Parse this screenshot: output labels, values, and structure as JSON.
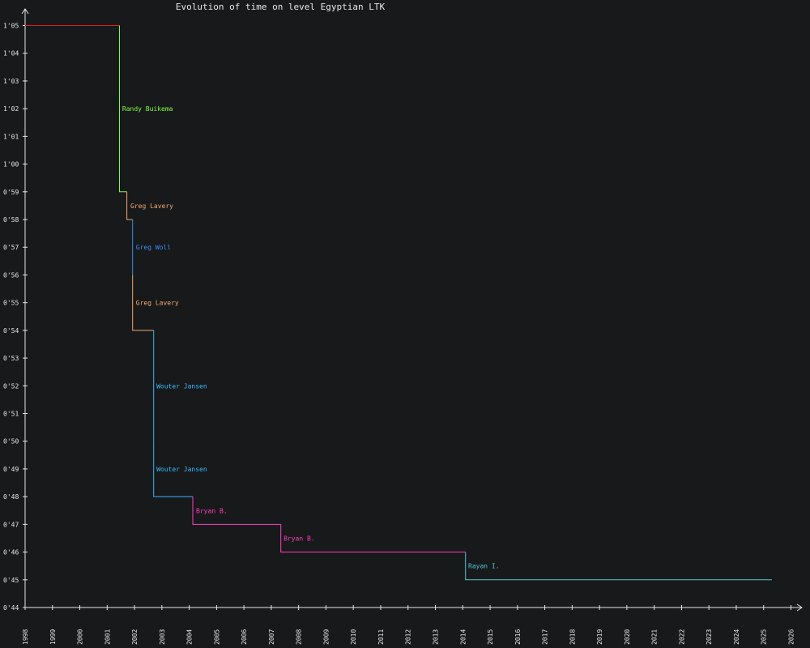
{
  "chart_data": {
    "type": "line",
    "subtype": "step",
    "title": "Evolution of time on level Egyptian LTK",
    "xlabel": "",
    "ylabel": "",
    "xlim": [
      1998,
      2026.4
    ],
    "ylim": [
      44,
      65.6
    ],
    "x_ticks": [
      "1998",
      "1999",
      "2000",
      "2001",
      "2002",
      "2003",
      "2004",
      "2005",
      "2006",
      "2007",
      "2008",
      "2009",
      "2010",
      "2011",
      "2012",
      "2013",
      "2014",
      "2015",
      "2016",
      "2017",
      "2018",
      "2019",
      "2020",
      "2021",
      "2022",
      "2023",
      "2024",
      "2025",
      "2026"
    ],
    "y_ticks": [
      {
        "v": 65,
        "label": "1'05"
      },
      {
        "v": 64,
        "label": "1'04"
      },
      {
        "v": 63,
        "label": "1'03"
      },
      {
        "v": 62,
        "label": "1'02"
      },
      {
        "v": 61,
        "label": "1'01"
      },
      {
        "v": 60,
        "label": "1'00"
      },
      {
        "v": 59,
        "label": "0'59"
      },
      {
        "v": 58,
        "label": "0'58"
      },
      {
        "v": 57,
        "label": "0'57"
      },
      {
        "v": 56,
        "label": "0'56"
      },
      {
        "v": 55,
        "label": "0'55"
      },
      {
        "v": 54,
        "label": "0'54"
      },
      {
        "v": 53,
        "label": "0'53"
      },
      {
        "v": 52,
        "label": "0'52"
      },
      {
        "v": 51,
        "label": "0'51"
      },
      {
        "v": 50,
        "label": "0'50"
      },
      {
        "v": 49,
        "label": "0'49"
      },
      {
        "v": 48,
        "label": "0'48"
      },
      {
        "v": 47,
        "label": "0'47"
      },
      {
        "v": 46,
        "label": "0'46"
      },
      {
        "v": 45,
        "label": "0'45"
      },
      {
        "v": 44,
        "label": "0'44"
      }
    ],
    "series": [
      {
        "color": "#e02020",
        "points": [
          [
            1998.0,
            65
          ],
          [
            2001.45,
            65
          ]
        ]
      },
      {
        "name": "Randy Buikema",
        "color": "#7fff3f",
        "label_at": [
          2001.55,
          62
        ],
        "points": [
          [
            2001.45,
            65
          ],
          [
            2001.45,
            59
          ],
          [
            2001.72,
            59
          ]
        ]
      },
      {
        "name": "Greg Lavery",
        "color": "#f0a868",
        "label_at": [
          2001.85,
          58.5
        ],
        "points": [
          [
            2001.72,
            59
          ],
          [
            2001.72,
            58
          ],
          [
            2001.93,
            58
          ]
        ]
      },
      {
        "name": "Greg Woll",
        "color": "#3a8ef6",
        "label_at": [
          2002.05,
          57
        ],
        "points": [
          [
            2001.93,
            58
          ],
          [
            2001.93,
            56
          ]
        ]
      },
      {
        "name": "Greg Lavery",
        "color": "#f0a868",
        "label_at": [
          2002.05,
          55
        ],
        "points": [
          [
            2001.93,
            56
          ],
          [
            2001.93,
            54
          ],
          [
            2002.7,
            54
          ]
        ]
      },
      {
        "name": "Wouter Jansen",
        "color": "#38b8ff",
        "label_at": [
          2002.8,
          52
        ],
        "points": [
          [
            2002.7,
            54
          ],
          [
            2002.7,
            50
          ]
        ]
      },
      {
        "name": "Wouter Jansen",
        "color": "#38b8ff",
        "label_at": [
          2002.8,
          49
        ],
        "points": [
          [
            2002.7,
            50
          ],
          [
            2002.7,
            48
          ],
          [
            2004.13,
            48
          ]
        ]
      },
      {
        "name": "Bryan B.",
        "color": "#ff3fbf",
        "label_at": [
          2004.25,
          47.5
        ],
        "points": [
          [
            2004.13,
            48
          ],
          [
            2004.13,
            47
          ],
          [
            2007.35,
            47
          ]
        ]
      },
      {
        "name": "Bryan B.",
        "color": "#ff3fbf",
        "label_at": [
          2007.45,
          46.5
        ],
        "points": [
          [
            2007.35,
            47
          ],
          [
            2007.35,
            46
          ],
          [
            2014.1,
            46
          ]
        ]
      },
      {
        "name": "Rayan I.",
        "color": "#4fc8d8",
        "label_at": [
          2014.2,
          45.5
        ],
        "points": [
          [
            2014.1,
            46
          ],
          [
            2014.1,
            45
          ],
          [
            2025.3,
            45
          ]
        ]
      }
    ],
    "grid": false,
    "legend": "none",
    "colors": {
      "background": "#18191b",
      "axis": "#e8e8e8",
      "text": "#e8e8e8"
    }
  }
}
